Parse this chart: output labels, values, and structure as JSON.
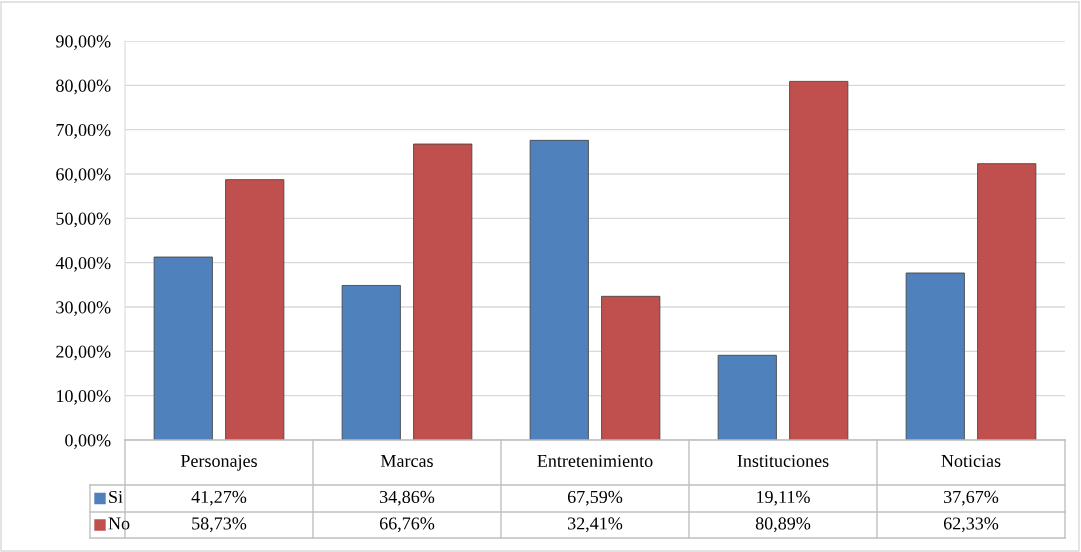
{
  "chart_data": {
    "type": "bar",
    "categories": [
      "Personajes",
      "Marcas",
      "Entretenimiento",
      "Instituciones",
      "Noticias"
    ],
    "series": [
      {
        "name": "Si",
        "color": "#4f81bd",
        "values": [
          41.27,
          34.86,
          67.59,
          19.11,
          37.67
        ],
        "value_labels": [
          "41,27%",
          "34,86%",
          "67,59%",
          "19,11%",
          "37,67%"
        ]
      },
      {
        "name": "No",
        "color": "#c0504d",
        "values": [
          58.73,
          66.76,
          32.41,
          80.89,
          62.33
        ],
        "value_labels": [
          "58,73%",
          "66,76%",
          "32,41%",
          "80,89%",
          "62,33%"
        ]
      }
    ],
    "ylim": [
      0,
      90
    ],
    "yticks": [
      {
        "value": 0,
        "label": "0,00%"
      },
      {
        "value": 10,
        "label": "10,00%"
      },
      {
        "value": 20,
        "label": "20,00%"
      },
      {
        "value": 30,
        "label": "30,00%"
      },
      {
        "value": 40,
        "label": "40,00%"
      },
      {
        "value": 50,
        "label": "50,00%"
      },
      {
        "value": 60,
        "label": "60,00%"
      },
      {
        "value": 70,
        "label": "70,00%"
      },
      {
        "value": 80,
        "label": "80,00%"
      },
      {
        "value": 90,
        "label": "90,00%"
      }
    ],
    "grid": "y",
    "legend": "bottom"
  }
}
